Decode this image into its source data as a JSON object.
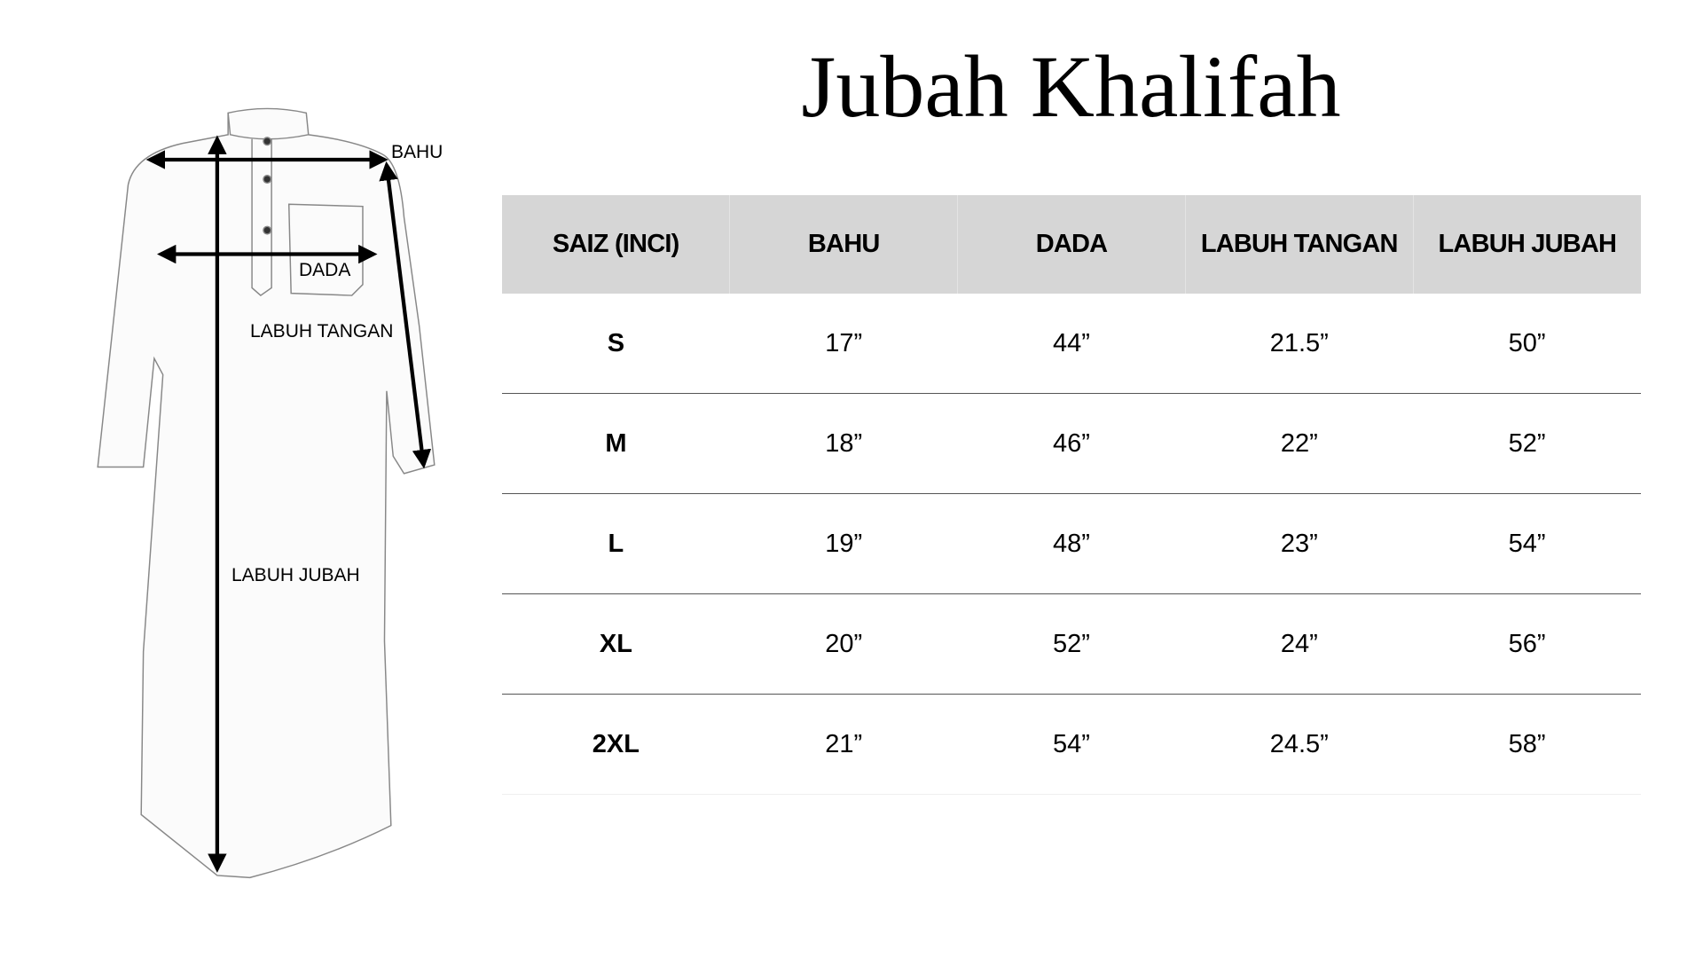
{
  "title": "Jubah Khalifah",
  "diagram": {
    "labels": {
      "bahu": "BAHU",
      "dada": "DADA",
      "labuh_tangan": "LABUH TANGAN",
      "labuh_jubah": "LABUH JUBAH"
    }
  },
  "table": {
    "headers": [
      "SAIZ (INCI)",
      "BAHU",
      "DADA",
      "LABUH TANGAN",
      "LABUH JUBAH"
    ],
    "rows": [
      [
        "S",
        "17”",
        "44”",
        "21.5”",
        "50”"
      ],
      [
        "M",
        "18”",
        "46”",
        "22”",
        "52”"
      ],
      [
        "L",
        "19”",
        "48”",
        "23”",
        "54”"
      ],
      [
        "XL",
        "20”",
        "52”",
        "24”",
        "56”"
      ],
      [
        "2XL",
        "21”",
        "54”",
        "24.5”",
        "58”"
      ]
    ],
    "header_bg": "#d6d6d6"
  }
}
